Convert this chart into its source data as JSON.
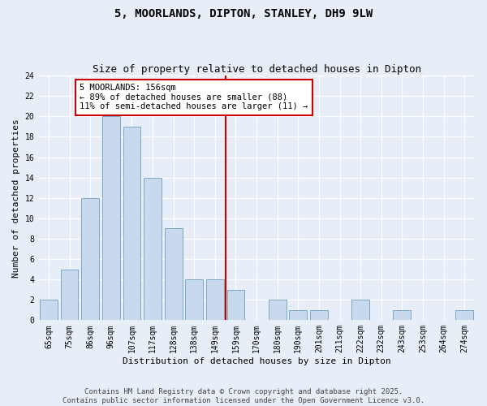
{
  "title": "5, MOORLANDS, DIPTON, STANLEY, DH9 9LW",
  "subtitle": "Size of property relative to detached houses in Dipton",
  "xlabel": "Distribution of detached houses by size in Dipton",
  "ylabel": "Number of detached properties",
  "categories": [
    "65sqm",
    "75sqm",
    "86sqm",
    "96sqm",
    "107sqm",
    "117sqm",
    "128sqm",
    "138sqm",
    "149sqm",
    "159sqm",
    "170sqm",
    "180sqm",
    "190sqm",
    "201sqm",
    "211sqm",
    "222sqm",
    "232sqm",
    "243sqm",
    "253sqm",
    "264sqm",
    "274sqm"
  ],
  "values": [
    2,
    5,
    12,
    20,
    19,
    14,
    9,
    4,
    4,
    3,
    0,
    2,
    1,
    1,
    0,
    2,
    0,
    1,
    0,
    0,
    1
  ],
  "bar_color": "#c9d9ed",
  "bar_edge_color": "#6a9fc0",
  "property_line_x": 8.5,
  "annotation_text": "5 MOORLANDS: 156sqm\n← 89% of detached houses are smaller (88)\n11% of semi-detached houses are larger (11) →",
  "annotation_box_color": "#ffffff",
  "annotation_box_edge": "#cc0000",
  "line_color": "#cc0000",
  "ylim": [
    0,
    24
  ],
  "yticks": [
    0,
    2,
    4,
    6,
    8,
    10,
    12,
    14,
    16,
    18,
    20,
    22,
    24
  ],
  "footer": "Contains HM Land Registry data © Crown copyright and database right 2025.\nContains public sector information licensed under the Open Government Licence v3.0.",
  "bg_color": "#e8eef8",
  "grid_color": "#ffffff",
  "title_fontsize": 10,
  "subtitle_fontsize": 9,
  "axis_label_fontsize": 8,
  "tick_fontsize": 7,
  "footer_fontsize": 6.5,
  "annot_fontsize": 7.5
}
